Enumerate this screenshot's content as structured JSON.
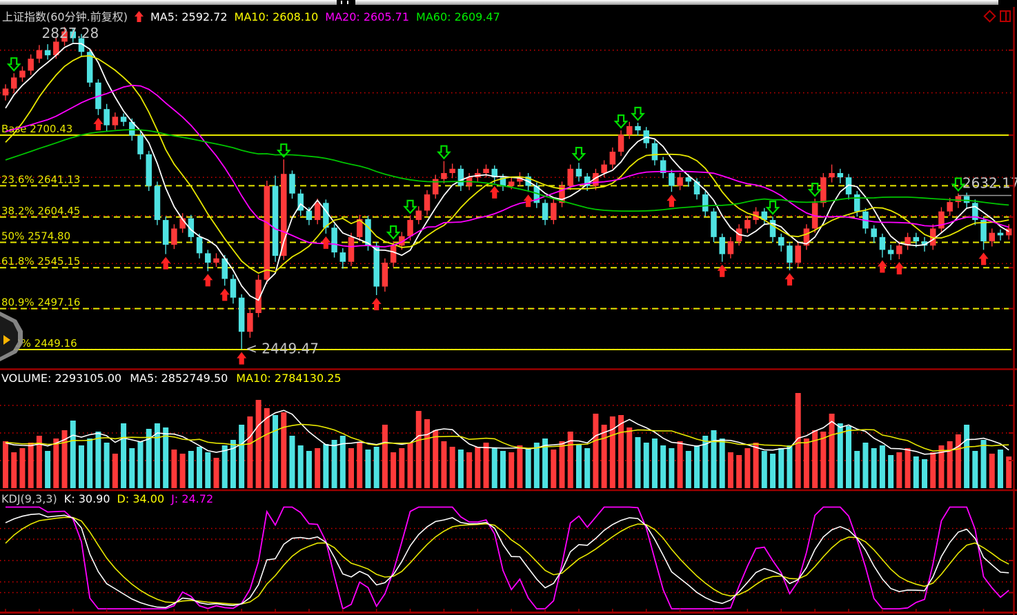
{
  "header": {
    "symbol": "上证指数(60分钟.前复权)",
    "signal_arrow_color": "#ff2d2d",
    "ma_values": [
      {
        "label": "MA5: 2592.72",
        "color": "#ffffff"
      },
      {
        "label": "MA10: 2608.10",
        "color": "#ffff00"
      },
      {
        "label": "MA20: 2605.71",
        "color": "#ff00ff"
      },
      {
        "label": "MA60: 2609.47",
        "color": "#00ee00"
      }
    ]
  },
  "volume_header": {
    "volume": "VOLUME: 2293105.00",
    "ma5": "MA5: 2852749.50",
    "ma10": "MA10: 2784130.25"
  },
  "kdj_header": {
    "name": "KDJ(9,3,3)",
    "k": "K: 30.90",
    "d": "D: 34.00",
    "j": "J: 24.72"
  },
  "colors": {
    "up": "#ff3a3a",
    "down": "#4fe2e2",
    "ma5": "#ffffff",
    "ma10": "#e8e800",
    "ma20": "#ff00ff",
    "ma60": "#00c400",
    "fib": "#e8e800",
    "dotted": "#d40000",
    "separator": "#9b0000",
    "annotation": "#c4c4c4",
    "sell_arrow": "#00dd00",
    "buy_arrow": "#ff2222"
  },
  "chart_data": [
    {
      "type": "candlestick",
      "title": "上证指数(60分钟.前复权)",
      "interval": "60min",
      "ma_periods": [
        5,
        10,
        20,
        60
      ],
      "ma_current": {
        "MA5": 2592.72,
        "MA10": 2608.1,
        "MA20": 2605.71,
        "MA60": 2609.47
      },
      "price_range": [
        2442.7,
        2828.1
      ],
      "fib_levels": [
        {
          "label": "Base 2700.43",
          "value": 2700.43,
          "style": "solid"
        },
        {
          "label": "23.6% 2641.13",
          "value": 2641.13,
          "style": "dashed"
        },
        {
          "label": "38.2% 2604.45",
          "value": 2604.45,
          "style": "dashed"
        },
        {
          "label": "50% 2574.80",
          "value": 2574.8,
          "style": "dashed"
        },
        {
          "label": "61.8% 2545.15",
          "value": 2545.15,
          "style": "dashed"
        },
        {
          "label": "80.9% 2497.16",
          "value": 2497.16,
          "style": "dashed"
        },
        {
          "label": "100% 2449.16",
          "value": 2449.16,
          "style": "solid"
        }
      ],
      "dotted_levels": [
        2800,
        2750,
        2651,
        2606,
        2550,
        2497.16,
        2449.47
      ],
      "annotations": [
        {
          "text": "2827.28",
          "price": 2827.28,
          "index": 7,
          "placement": "above",
          "tag_line": false
        },
        {
          "text": "< 2449.47",
          "price": 2449.47,
          "index": 28,
          "placement": "below",
          "tag_line": false
        },
        {
          "text": "2632.17",
          "price": 2632.17,
          "index": 113,
          "placement": "right",
          "tag_line": true
        }
      ],
      "buy_arrows": [
        11,
        19,
        24,
        26,
        28,
        38,
        44,
        58,
        62,
        79,
        85,
        93,
        104,
        106,
        116
      ],
      "sell_arrows": [
        1,
        33,
        46,
        48,
        52,
        68,
        73,
        75,
        91,
        96,
        113
      ],
      "ohlc": [
        [
          2747,
          2760,
          2741,
          2755
        ],
        [
          2755,
          2773,
          2750,
          2768
        ],
        [
          2768,
          2781,
          2763,
          2776
        ],
        [
          2776,
          2795,
          2771,
          2790
        ],
        [
          2790,
          2806,
          2785,
          2800
        ],
        [
          2800,
          2807,
          2789,
          2794
        ],
        [
          2794,
          2815,
          2790,
          2810
        ],
        [
          2810,
          2827.28,
          2805,
          2822
        ],
        [
          2822,
          2826,
          2809,
          2814
        ],
        [
          2814,
          2819,
          2793,
          2798
        ],
        [
          2798,
          2802,
          2757,
          2762
        ],
        [
          2762,
          2766,
          2724,
          2731
        ],
        [
          2731,
          2737,
          2705,
          2712
        ],
        [
          2712,
          2727,
          2707,
          2722
        ],
        [
          2722,
          2726,
          2711,
          2716
        ],
        [
          2716,
          2720,
          2694,
          2700
        ],
        [
          2700,
          2704,
          2672,
          2678
        ],
        [
          2678,
          2682,
          2635,
          2641
        ],
        [
          2641,
          2646,
          2595,
          2601
        ],
        [
          2601,
          2605,
          2561,
          2572
        ],
        [
          2572,
          2596,
          2567,
          2591
        ],
        [
          2591,
          2609,
          2586,
          2603
        ],
        [
          2603,
          2607,
          2576,
          2581
        ],
        [
          2581,
          2585,
          2556,
          2562
        ],
        [
          2562,
          2566,
          2541,
          2551
        ],
        [
          2551,
          2562,
          2546,
          2556
        ],
        [
          2556,
          2560,
          2524,
          2532
        ],
        [
          2532,
          2537,
          2503,
          2510
        ],
        [
          2510,
          2514,
          2449.47,
          2470
        ],
        [
          2470,
          2498,
          2463,
          2492
        ],
        [
          2492,
          2537,
          2487,
          2531
        ],
        [
          2531,
          2647,
          2526,
          2641
        ],
        [
          2641,
          2653,
          2552,
          2559
        ],
        [
          2559,
          2672,
          2554,
          2655
        ],
        [
          2655,
          2659,
          2626,
          2632
        ],
        [
          2632,
          2637,
          2606,
          2612
        ],
        [
          2612,
          2616,
          2595,
          2601
        ],
        [
          2601,
          2626,
          2596,
          2621
        ],
        [
          2621,
          2625,
          2585,
          2592
        ],
        [
          2592,
          2596,
          2557,
          2563
        ],
        [
          2563,
          2568,
          2544,
          2552
        ],
        [
          2552,
          2586,
          2547,
          2581
        ],
        [
          2581,
          2607,
          2576,
          2602
        ],
        [
          2602,
          2606,
          2565,
          2571
        ],
        [
          2571,
          2575,
          2513,
          2523
        ],
        [
          2523,
          2556,
          2517,
          2551
        ],
        [
          2551,
          2576,
          2546,
          2571
        ],
        [
          2571,
          2587,
          2566,
          2582
        ],
        [
          2582,
          2606,
          2577,
          2601
        ],
        [
          2601,
          2617,
          2596,
          2612
        ],
        [
          2612,
          2636,
          2607,
          2631
        ],
        [
          2631,
          2654,
          2626,
          2649
        ],
        [
          2649,
          2670,
          2644,
          2656
        ],
        [
          2656,
          2667,
          2650,
          2661
        ],
        [
          2661,
          2665,
          2635,
          2641
        ],
        [
          2641,
          2656,
          2636,
          2651
        ],
        [
          2651,
          2661,
          2645,
          2656
        ],
        [
          2656,
          2666,
          2651,
          2661
        ],
        [
          2661,
          2665,
          2644,
          2651
        ],
        [
          2651,
          2655,
          2635,
          2641
        ],
        [
          2641,
          2651,
          2637,
          2646
        ],
        [
          2646,
          2657,
          2641,
          2652
        ],
        [
          2652,
          2656,
          2634,
          2641
        ],
        [
          2641,
          2645,
          2615,
          2621
        ],
        [
          2621,
          2625,
          2595,
          2601
        ],
        [
          2601,
          2626,
          2596,
          2621
        ],
        [
          2621,
          2646,
          2616,
          2641
        ],
        [
          2641,
          2666,
          2636,
          2661
        ],
        [
          2661,
          2668,
          2646,
          2652
        ],
        [
          2652,
          2656,
          2635,
          2641
        ],
        [
          2641,
          2661,
          2636,
          2656
        ],
        [
          2656,
          2671,
          2651,
          2666
        ],
        [
          2666,
          2686,
          2661,
          2681
        ],
        [
          2681,
          2706,
          2676,
          2701
        ],
        [
          2701,
          2716,
          2696,
          2711
        ],
        [
          2711,
          2715,
          2700,
          2706
        ],
        [
          2706,
          2710,
          2685,
          2691
        ],
        [
          2691,
          2695,
          2665,
          2671
        ],
        [
          2671,
          2675,
          2650,
          2656
        ],
        [
          2656,
          2660,
          2634,
          2641
        ],
        [
          2641,
          2656,
          2636,
          2651
        ],
        [
          2651,
          2655,
          2640,
          2646
        ],
        [
          2646,
          2650,
          2625,
          2631
        ],
        [
          2631,
          2635,
          2605,
          2611
        ],
        [
          2611,
          2615,
          2575,
          2581
        ],
        [
          2581,
          2585,
          2552,
          2561
        ],
        [
          2561,
          2581,
          2556,
          2576
        ],
        [
          2576,
          2596,
          2571,
          2591
        ],
        [
          2591,
          2606,
          2586,
          2601
        ],
        [
          2601,
          2616,
          2596,
          2611
        ],
        [
          2611,
          2615,
          2595,
          2601
        ],
        [
          2601,
          2605,
          2575,
          2581
        ],
        [
          2581,
          2585,
          2564,
          2571
        ],
        [
          2571,
          2575,
          2542,
          2551
        ],
        [
          2551,
          2576,
          2546,
          2571
        ],
        [
          2571,
          2596,
          2566,
          2591
        ],
        [
          2591,
          2626,
          2586,
          2621
        ],
        [
          2621,
          2656,
          2616,
          2651
        ],
        [
          2651,
          2666,
          2645,
          2656
        ],
        [
          2656,
          2661,
          2644,
          2651
        ],
        [
          2651,
          2655,
          2625,
          2631
        ],
        [
          2631,
          2635,
          2605,
          2611
        ],
        [
          2611,
          2615,
          2585,
          2591
        ],
        [
          2591,
          2595,
          2574,
          2581
        ],
        [
          2581,
          2585,
          2557,
          2566
        ],
        [
          2566,
          2572,
          2554,
          2561
        ],
        [
          2561,
          2576,
          2555,
          2571
        ],
        [
          2571,
          2586,
          2566,
          2581
        ],
        [
          2581,
          2586,
          2569,
          2576
        ],
        [
          2576,
          2581,
          2564,
          2571
        ],
        [
          2571,
          2596,
          2566,
          2591
        ],
        [
          2591,
          2616,
          2586,
          2611
        ],
        [
          2611,
          2627,
          2606,
          2622
        ],
        [
          2622,
          2632.17,
          2615,
          2629
        ],
        [
          2629,
          2633,
          2614,
          2621
        ],
        [
          2621,
          2625,
          2595,
          2601
        ],
        [
          2601,
          2605,
          2566,
          2576
        ],
        [
          2576,
          2591,
          2570,
          2586
        ],
        [
          2586,
          2590,
          2577,
          2583
        ],
        [
          2583,
          2596,
          2578,
          2591
        ]
      ],
      "pre_window_closes": [
        2562,
        2570,
        2578,
        2586,
        2594,
        2602,
        2610,
        2618,
        2626,
        2634,
        2642,
        2650,
        2658,
        2666,
        2674,
        2682,
        2690,
        2698,
        2706,
        2714,
        2708,
        2700,
        2692,
        2684,
        2676,
        2668,
        2660,
        2652,
        2646,
        2640,
        2636,
        2634,
        2636,
        2640,
        2646,
        2654,
        2663,
        2673,
        2684,
        2695,
        2706,
        2716,
        2725,
        2733,
        2740,
        2736,
        2728,
        2718,
        2706,
        2692,
        2678,
        2664,
        2652,
        2644,
        2640,
        2660,
        2690,
        2720,
        2745,
        2750
      ]
    },
    {
      "type": "bar",
      "name": "VOLUME",
      "current": 2293105.0,
      "ma5": 2852749.5,
      "ma10": 2784130.25,
      "gridlines": [
        2000000,
        4000000,
        6000000
      ],
      "values": [
        3400000,
        2600000,
        2900000,
        3300000,
        3800000,
        2700000,
        3600000,
        4200000,
        4900000,
        3100000,
        3600000,
        4100000,
        3300000,
        2500000,
        4700000,
        2900000,
        3400000,
        4300000,
        4700000,
        4400000,
        2800000,
        2500000,
        2700000,
        3000000,
        2600000,
        2200000,
        3100000,
        3500000,
        4600000,
        5200000,
        6400000,
        5800000,
        5300000,
        5500000,
        3800000,
        3100000,
        2700000,
        2900000,
        3200000,
        3500000,
        3800000,
        2900000,
        3300000,
        2800000,
        3000000,
        4600000,
        2600000,
        2900000,
        3300000,
        5600000,
        5000000,
        4200000,
        3400000,
        3000000,
        2800000,
        2600000,
        3000000,
        3300000,
        2900000,
        2700000,
        2600000,
        3100000,
        2900000,
        3300000,
        3600000,
        2800000,
        3400000,
        4100000,
        3200000,
        2900000,
        5400000,
        4600000,
        5200000,
        5300000,
        4400000,
        3700000,
        3300000,
        3600000,
        3100000,
        2900000,
        3400000,
        2700000,
        3100000,
        3800000,
        4200000,
        3600000,
        2600000,
        2400000,
        2900000,
        3300000,
        2700000,
        2500000,
        2900000,
        3100000,
        6900000,
        3600000,
        4200000,
        4100000,
        5400000,
        4700000,
        4500000,
        2700000,
        3300000,
        2900000,
        3100000,
        2400000,
        2600000,
        2900000,
        2300000,
        2100000,
        2600000,
        3100000,
        3400000,
        3900000,
        4600000,
        2700000,
        3500000,
        2500000,
        2800000,
        2293105
      ],
      "pre_window_values": [
        3300000,
        3100000,
        3500000,
        3200000,
        3400000,
        3600000,
        3300000,
        3100000,
        3400000,
        3200000
      ]
    },
    {
      "type": "line",
      "name": "KDJ(9,3,3)",
      "current": {
        "K": 30.9,
        "D": 34.0,
        "J": 24.72
      },
      "gridlines": [
        80,
        70,
        50,
        30,
        20
      ],
      "series_colors": {
        "K": "#ffffff",
        "D": "#e8e800",
        "J": "#ff00ff"
      }
    }
  ]
}
